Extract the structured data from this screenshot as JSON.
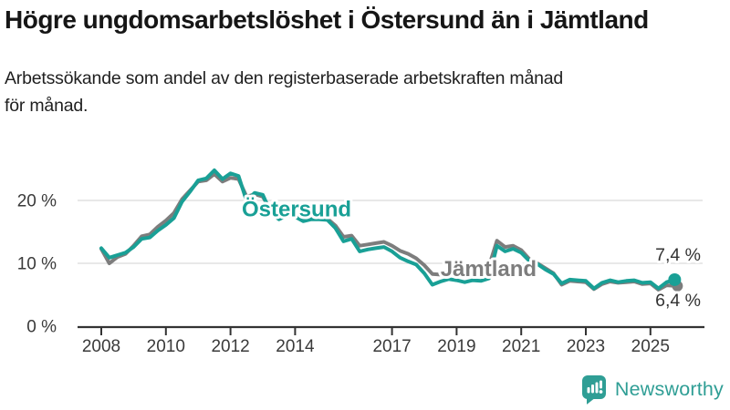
{
  "header": {
    "title": "Högre ungdomsarbetslöshet i Östersund än i Jämtland",
    "subtitle": "Arbetssökande som andel av den registerbaserade arbetskraften månad\nför månad."
  },
  "footer": {
    "brand": "Newsworthy"
  },
  "colors": {
    "ostersund": "#19a096",
    "jamtland": "#7d7d7d",
    "grid": "#e0e0e0",
    "axis": "#333333",
    "tick_text": "#3a3a3a",
    "end_label_text": "#333333",
    "title_text": "#161616",
    "brand": "#2f9e95"
  },
  "chart_data": {
    "type": "line",
    "title": "Högre ungdomsarbetslöshet i Östersund än i Jämtland",
    "subtitle": "Arbetssökande som andel av den registerbaserade arbetskraften månad för månad.",
    "unit": "%",
    "grid": "horizontal",
    "x_start": 2008.0,
    "x_step": 0.25,
    "xlim": [
      2007.3,
      2026.6
    ],
    "ylim": [
      0,
      26
    ],
    "xticks": [
      {
        "value": 2008,
        "label": "2008"
      },
      {
        "value": 2010,
        "label": "2010"
      },
      {
        "value": 2012,
        "label": "2012"
      },
      {
        "value": 2014,
        "label": "2014"
      },
      {
        "value": 2017,
        "label": "2017"
      },
      {
        "value": 2019,
        "label": "2019"
      },
      {
        "value": 2021,
        "label": "2021"
      },
      {
        "value": 2023,
        "label": "2023"
      },
      {
        "value": 2025,
        "label": "2025"
      }
    ],
    "yticks": [
      {
        "value": 0,
        "label": "0 %"
      },
      {
        "value": 10,
        "label": "10 %"
      },
      {
        "value": 20,
        "label": "20 %"
      }
    ],
    "series": [
      {
        "name": "Östersund",
        "color_key": "ostersund",
        "end_value": 7.4,
        "end_label": "7,4 %",
        "values": [
          12.4,
          10.9,
          11.3,
          11.7,
          12.6,
          13.9,
          14.1,
          15.2,
          16.1,
          17.2,
          19.8,
          21.4,
          23.2,
          23.5,
          24.8,
          23.4,
          24.3,
          23.9,
          19.9,
          21.2,
          20.9,
          18.0,
          17.0,
          17.6,
          17.4,
          16.7,
          17.0,
          17.0,
          16.9,
          15.6,
          13.5,
          13.9,
          11.9,
          12.2,
          12.4,
          12.6,
          11.9,
          10.9,
          10.3,
          9.8,
          8.4,
          6.6,
          7.1,
          7.5,
          7.3,
          7.0,
          7.3,
          7.2,
          7.6,
          12.8,
          11.9,
          12.3,
          11.7,
          10.4,
          9.9,
          9.0,
          8.3,
          6.8,
          7.4,
          7.3,
          7.2,
          6.0,
          6.9,
          7.3,
          7.0,
          7.2,
          7.3,
          6.9,
          7.0,
          6.0,
          7.0,
          7.4
        ]
      },
      {
        "name": "Jämtland",
        "color_key": "jamtland",
        "end_value": 6.4,
        "end_label": "6,4 %",
        "values": [
          12.3,
          10.0,
          11.0,
          11.5,
          12.8,
          14.3,
          14.6,
          15.8,
          16.8,
          18.0,
          20.2,
          21.6,
          23.0,
          23.2,
          24.2,
          23.0,
          23.6,
          23.4,
          20.6,
          21.0,
          20.6,
          18.4,
          17.5,
          17.9,
          17.6,
          17.0,
          17.2,
          17.2,
          17.1,
          16.0,
          14.2,
          14.4,
          12.8,
          13.0,
          13.2,
          13.4,
          12.8,
          12.0,
          11.5,
          10.8,
          9.7,
          8.3,
          8.2,
          8.8,
          8.8,
          8.4,
          8.7,
          9.0,
          9.5,
          13.6,
          12.6,
          12.8,
          12.1,
          10.7,
          10.0,
          9.2,
          8.4,
          6.6,
          7.2,
          7.1,
          7.0,
          5.9,
          6.7,
          7.1,
          6.9,
          7.0,
          7.1,
          6.7,
          6.8,
          5.8,
          6.5,
          6.4
        ]
      }
    ],
    "annotations": [
      {
        "text": "Östersund",
        "x": 2012.35,
        "y": 17.5,
        "color_key": "ostersund"
      },
      {
        "text": "Jämtland",
        "x": 2018.5,
        "y": 8.0,
        "color_key": "jamtland"
      }
    ]
  }
}
